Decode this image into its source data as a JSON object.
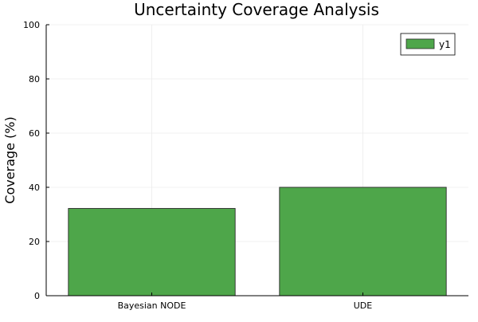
{
  "chart_data": {
    "type": "bar",
    "title": "Uncertainty Coverage Analysis",
    "xlabel": "",
    "ylabel": "Coverage (%)",
    "categories": [
      "Bayesian NODE",
      "UDE"
    ],
    "series": [
      {
        "name": "y1",
        "values": [
          32.2,
          40.0
        ]
      }
    ],
    "ylim": [
      0,
      100
    ],
    "yticks": [
      0,
      20,
      40,
      60,
      80,
      100
    ],
    "grid": true,
    "legend_position": "top-right",
    "colors": {
      "bar": "#4ea64a",
      "bar_stroke": "#2b2b2b",
      "grid": "#ebebeb",
      "axis": "#000000"
    }
  }
}
